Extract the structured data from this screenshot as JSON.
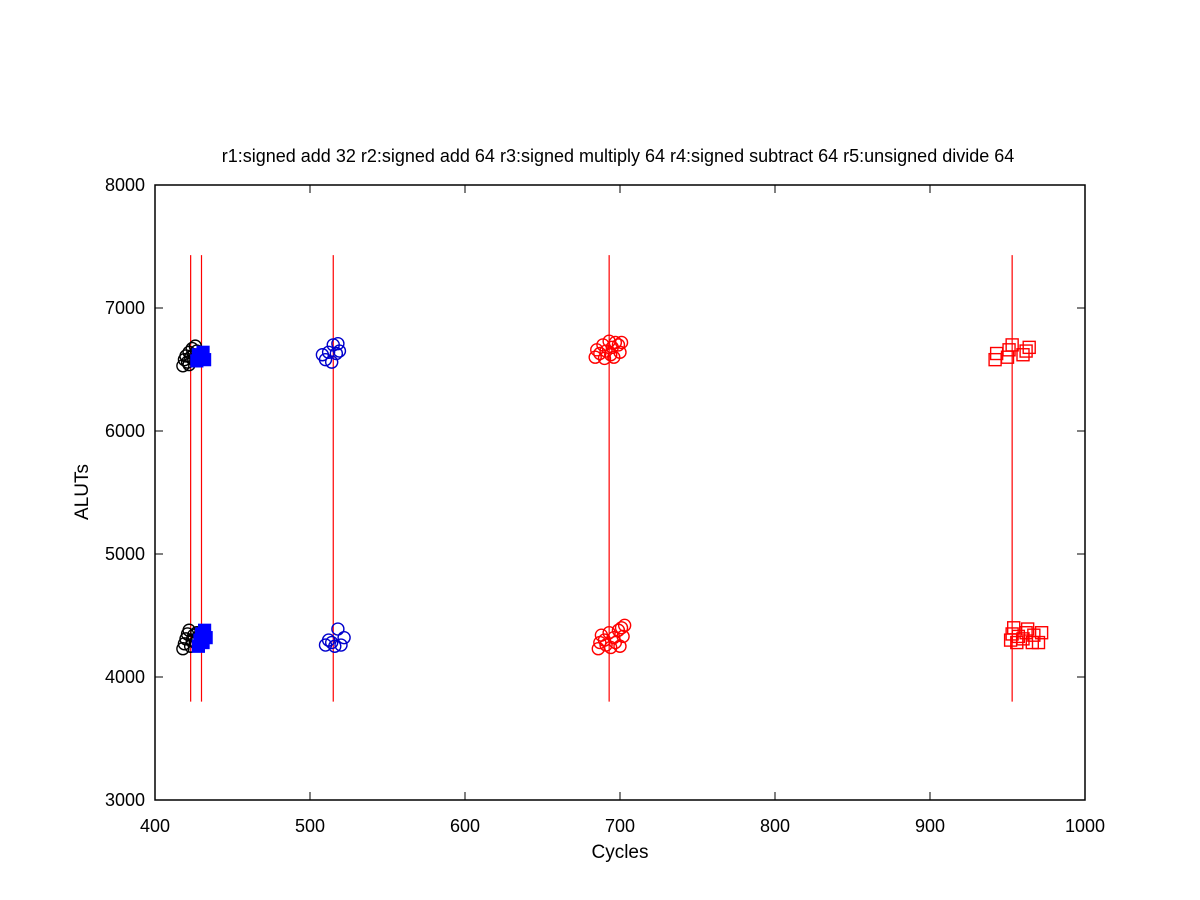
{
  "chart_data": {
    "type": "scatter",
    "title": "r1:signed add 32 r2:signed add 64 r3:signed multiply 64 r4:signed subtract 64 r5:unsigned divide 64",
    "xlabel": "Cycles",
    "ylabel": "ALUTs",
    "xlim": [
      400,
      1000
    ],
    "ylim": [
      3000,
      8000
    ],
    "xticks": [
      400,
      500,
      600,
      700,
      800,
      900,
      1000
    ],
    "yticks": [
      3000,
      4000,
      5000,
      6000,
      7000,
      8000
    ],
    "grid": false,
    "legend": "none",
    "reference_lines": {
      "x": [
        423,
        430,
        515,
        693,
        953
      ],
      "y_range": [
        3800,
        7430
      ],
      "color": "#ff0000"
    },
    "series": [
      {
        "marker": "circle",
        "color": "#000000",
        "points": [
          [
            418,
            6530
          ],
          [
            419,
            6580
          ],
          [
            420,
            6610
          ],
          [
            421,
            6560
          ],
          [
            422,
            6640
          ],
          [
            423,
            6600
          ],
          [
            424,
            6670
          ],
          [
            425,
            6620
          ],
          [
            426,
            6690
          ],
          [
            427,
            6650
          ],
          [
            422,
            6540
          ],
          [
            425,
            6580
          ],
          [
            418,
            4230
          ],
          [
            419,
            4270
          ],
          [
            420,
            4310
          ],
          [
            421,
            4350
          ],
          [
            422,
            4380
          ],
          [
            423,
            4250
          ],
          [
            424,
            4300
          ],
          [
            425,
            4340
          ],
          [
            426,
            4280
          ],
          [
            427,
            4360
          ]
        ]
      },
      {
        "marker": "square-filled",
        "color": "#0000ff",
        "points": [
          [
            427,
            6570
          ],
          [
            428,
            6620
          ],
          [
            430,
            6600
          ],
          [
            431,
            6640
          ],
          [
            432,
            6580
          ],
          [
            428,
            4250
          ],
          [
            429,
            4300
          ],
          [
            430,
            4350
          ],
          [
            431,
            4280
          ],
          [
            432,
            4380
          ],
          [
            433,
            4320
          ]
        ]
      },
      {
        "marker": "circle",
        "color": "#0000cc",
        "points": [
          [
            508,
            6620
          ],
          [
            510,
            6580
          ],
          [
            512,
            6640
          ],
          [
            514,
            6560
          ],
          [
            515,
            6700
          ],
          [
            517,
            6630
          ],
          [
            518,
            6710
          ],
          [
            519,
            6650
          ],
          [
            510,
            4260
          ],
          [
            512,
            4300
          ],
          [
            514,
            4280
          ],
          [
            516,
            4250
          ],
          [
            518,
            4390
          ],
          [
            520,
            4260
          ],
          [
            522,
            4320
          ]
        ]
      },
      {
        "marker": "circle",
        "color": "#ff0000",
        "points": [
          [
            684,
            6600
          ],
          [
            685,
            6660
          ],
          [
            687,
            6630
          ],
          [
            689,
            6700
          ],
          [
            690,
            6590
          ],
          [
            691,
            6650
          ],
          [
            693,
            6730
          ],
          [
            694,
            6620
          ],
          [
            695,
            6680
          ],
          [
            696,
            6600
          ],
          [
            697,
            6720
          ],
          [
            699,
            6700
          ],
          [
            700,
            6640
          ],
          [
            701,
            6720
          ],
          [
            686,
            4230
          ],
          [
            687,
            4280
          ],
          [
            688,
            4340
          ],
          [
            690,
            4300
          ],
          [
            691,
            4260
          ],
          [
            693,
            4360
          ],
          [
            694,
            4240
          ],
          [
            696,
            4320
          ],
          [
            697,
            4280
          ],
          [
            699,
            4380
          ],
          [
            700,
            4250
          ],
          [
            701,
            4400
          ],
          [
            702,
            4330
          ],
          [
            703,
            4420
          ]
        ]
      },
      {
        "marker": "square-open",
        "color": "#ff0000",
        "points": [
          [
            942,
            6580
          ],
          [
            943,
            6630
          ],
          [
            950,
            6600
          ],
          [
            951,
            6660
          ],
          [
            953,
            6700
          ],
          [
            960,
            6620
          ],
          [
            962,
            6650
          ],
          [
            964,
            6680
          ],
          [
            952,
            4300
          ],
          [
            953,
            4350
          ],
          [
            954,
            4400
          ],
          [
            956,
            4280
          ],
          [
            957,
            4330
          ],
          [
            960,
            4310
          ],
          [
            962,
            4360
          ],
          [
            963,
            4390
          ],
          [
            966,
            4280
          ],
          [
            967,
            4340
          ],
          [
            970,
            4280
          ],
          [
            972,
            4360
          ]
        ]
      }
    ]
  }
}
